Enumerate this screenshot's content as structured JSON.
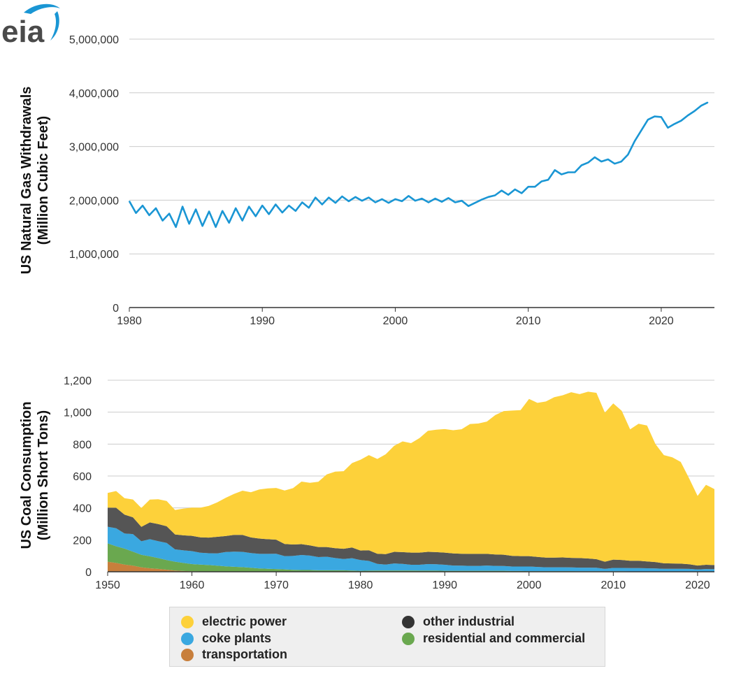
{
  "top_chart": {
    "ylabel_line1": "US Natural Gas Withdrawals",
    "ylabel_line2": "(Million Cubic Feet)",
    "yticks": [
      "0",
      "1,000,000",
      "2,000,000",
      "3,000,000",
      "4,000,000",
      "5,000,000"
    ],
    "xticks": [
      "1980",
      "1990",
      "2000",
      "2010",
      "2020"
    ]
  },
  "bottom_chart": {
    "ylabel_line1": "US Coal Consumption",
    "ylabel_line2": "(Million Short Tons)",
    "yticks": [
      "0",
      "200",
      "400",
      "600",
      "800",
      "1,000",
      "1,200"
    ],
    "xticks": [
      "1950",
      "1960",
      "1970",
      "1980",
      "1990",
      "2000",
      "2010",
      "2020"
    ]
  },
  "legend": {
    "electric_power": "electric power",
    "coke_plants": "coke plants",
    "transportation": "transportation",
    "other_industrial": "other industrial",
    "residential_commercial": "residential and commercial"
  },
  "logo": {
    "text": "eia"
  },
  "colors": {
    "gas_line": "#1a96d4",
    "electric_power": "#fdd13a",
    "coke_plants": "#3aa8e0",
    "transportation": "#c87f3c",
    "other_industrial": "#555555",
    "residential_commercial": "#6aa84f",
    "grid": "#cccccc",
    "axis": "#333333"
  },
  "chart_data": [
    {
      "type": "line",
      "ylabel": "US Natural Gas Withdrawals (Million Cubic Feet)",
      "xlim": [
        1980,
        2024
      ],
      "ylim": [
        0,
        5000000
      ],
      "grid": true,
      "series": [
        {
          "x": [
            1980.0,
            1980.5,
            1981.0,
            1981.5,
            1982.0,
            1982.5,
            1983.0,
            1983.5,
            1984.0,
            1984.5,
            1985.0,
            1985.5,
            1986.0,
            1986.5,
            1987.0,
            1987.5,
            1988.0,
            1988.5,
            1989.0,
            1989.5,
            1990.0,
            1990.5,
            1991.0,
            1991.5,
            1992.0,
            1992.5,
            1993.0,
            1993.5,
            1994.0,
            1994.5,
            1995.0,
            1995.5,
            1996.0,
            1996.5,
            1997.0,
            1997.5,
            1998.0,
            1998.5,
            1999.0,
            1999.5,
            2000.0,
            2000.5,
            2001.0,
            2001.5,
            2002.0,
            2002.5,
            2003.0,
            2003.5,
            2004.0,
            2004.5,
            2005.0,
            2005.5,
            2006.0,
            2006.5,
            2007.0,
            2007.5,
            2008.0,
            2008.5,
            2009.0,
            2009.5,
            2010.0,
            2010.5,
            2011.0,
            2011.5,
            2012.0,
            2012.5,
            2013.0,
            2013.5,
            2014.0,
            2014.5,
            2015.0,
            2015.5,
            2016.0,
            2016.5,
            2017.0,
            2017.5,
            2018.0,
            2018.5,
            2019.0,
            2019.5,
            2020.0,
            2020.5,
            2021.0,
            2021.5,
            2022.0,
            2022.5,
            2023.0,
            2023.5
          ],
          "y": [
            1980000,
            1760000,
            1900000,
            1720000,
            1850000,
            1620000,
            1750000,
            1500000,
            1880000,
            1560000,
            1830000,
            1520000,
            1790000,
            1500000,
            1800000,
            1580000,
            1850000,
            1620000,
            1880000,
            1700000,
            1900000,
            1740000,
            1920000,
            1770000,
            1900000,
            1800000,
            1960000,
            1860000,
            2050000,
            1920000,
            2050000,
            1950000,
            2070000,
            1980000,
            2060000,
            1990000,
            2050000,
            1960000,
            2020000,
            1950000,
            2020000,
            1980000,
            2080000,
            1990000,
            2030000,
            1960000,
            2030000,
            1970000,
            2040000,
            1960000,
            1990000,
            1890000,
            1950000,
            2010000,
            2060000,
            2090000,
            2180000,
            2100000,
            2200000,
            2130000,
            2250000,
            2250000,
            2350000,
            2380000,
            2560000,
            2480000,
            2520000,
            2520000,
            2650000,
            2700000,
            2800000,
            2720000,
            2760000,
            2680000,
            2720000,
            2850000,
            3100000,
            3300000,
            3500000,
            3560000,
            3550000,
            3350000,
            3420000,
            3480000,
            3580000,
            3660000,
            3760000,
            3820000
          ]
        }
      ]
    },
    {
      "type": "area",
      "ylabel": "US Coal Consumption (Million Short Tons)",
      "xlim": [
        1950,
        2022
      ],
      "ylim": [
        0,
        1200
      ],
      "grid": true,
      "stacked": true,
      "x": [
        1950,
        1951,
        1952,
        1953,
        1954,
        1955,
        1956,
        1957,
        1958,
        1959,
        1960,
        1961,
        1962,
        1963,
        1964,
        1965,
        1966,
        1967,
        1968,
        1969,
        1970,
        1971,
        1972,
        1973,
        1974,
        1975,
        1976,
        1977,
        1978,
        1979,
        1980,
        1981,
        1982,
        1983,
        1984,
        1985,
        1986,
        1987,
        1988,
        1989,
        1990,
        1991,
        1992,
        1993,
        1994,
        1995,
        1996,
        1997,
        1998,
        1999,
        2000,
        2001,
        2002,
        2003,
        2004,
        2005,
        2006,
        2007,
        2008,
        2009,
        2010,
        2011,
        2012,
        2013,
        2014,
        2015,
        2016,
        2017,
        2018,
        2019,
        2020,
        2021,
        2022
      ],
      "series": [
        {
          "name": "transportation",
          "values": [
            63,
            55,
            45,
            38,
            28,
            22,
            18,
            13,
            8,
            5,
            3,
            2,
            2,
            1,
            1,
            1,
            1,
            1,
            1,
            1,
            1,
            1,
            0,
            0,
            0,
            0,
            0,
            0,
            0,
            0,
            0,
            0,
            0,
            0,
            0,
            0,
            0,
            0,
            0,
            0,
            0,
            0,
            0,
            0,
            0,
            0,
            0,
            0,
            0,
            0,
            0,
            0,
            0,
            0,
            0,
            0,
            0,
            0,
            0,
            0,
            0,
            0,
            0,
            0,
            0,
            0,
            0,
            0,
            0,
            0,
            0,
            0,
            0
          ]
        },
        {
          "name": "residential and commercial",
          "values": [
            115,
            105,
            100,
            88,
            78,
            75,
            68,
            60,
            55,
            50,
            45,
            43,
            40,
            37,
            33,
            30,
            28,
            24,
            20,
            18,
            16,
            14,
            12,
            11,
            11,
            9,
            9,
            9,
            9,
            8,
            6,
            7,
            8,
            8,
            8,
            8,
            8,
            7,
            7,
            7,
            6,
            6,
            6,
            6,
            6,
            6,
            6,
            6,
            5,
            5,
            4,
            4,
            4,
            4,
            4,
            4,
            3,
            3,
            3,
            3,
            3,
            3,
            2,
            2,
            2,
            2,
            2,
            2,
            2,
            2,
            1,
            1,
            1
          ]
        },
        {
          "name": "coke plants",
          "values": [
            104,
            113,
            95,
            110,
            85,
            107,
            106,
            108,
            77,
            79,
            81,
            74,
            74,
            77,
            90,
            95,
            96,
            92,
            91,
            93,
            96,
            83,
            87,
            94,
            90,
            83,
            85,
            77,
            71,
            77,
            67,
            61,
            41,
            37,
            44,
            41,
            36,
            37,
            41,
            40,
            38,
            33,
            32,
            31,
            31,
            33,
            31,
            30,
            28,
            28,
            29,
            26,
            24,
            24,
            24,
            23,
            23,
            23,
            22,
            15,
            21,
            21,
            21,
            21,
            20,
            19,
            17,
            17,
            17,
            16,
            13,
            16,
            15
          ]
        },
        {
          "name": "other industrial",
          "values": [
            120,
            128,
            118,
            105,
            90,
            105,
            107,
            104,
            94,
            94,
            96,
            97,
            98,
            104,
            100,
            105,
            106,
            98,
            96,
            92,
            88,
            76,
            72,
            68,
            64,
            63,
            61,
            62,
            64,
            67,
            60,
            67,
            64,
            66,
            73,
            74,
            76,
            76,
            77,
            76,
            76,
            76,
            75,
            75,
            75,
            73,
            71,
            71,
            67,
            65,
            65,
            63,
            61,
            61,
            62,
            60,
            60,
            57,
            54,
            45,
            52,
            50,
            46,
            46,
            43,
            40,
            34,
            33,
            32,
            29,
            25,
            27,
            26
          ]
        },
        {
          "name": "electric power",
          "values": [
            92,
            105,
            103,
            112,
            119,
            143,
            155,
            158,
            153,
            168,
            177,
            185,
            199,
            216,
            239,
            257,
            277,
            283,
            308,
            318,
            324,
            335,
            353,
            392,
            392,
            409,
            455,
            479,
            486,
            529,
            569,
            596,
            594,
            625,
            664,
            694,
            686,
            718,
            758,
            767,
            774,
            772,
            780,
            814,
            817,
            829,
            874,
            900,
            910,
            915,
            985,
            965,
            978,
            1005,
            1016,
            1038,
            1027,
            1045,
            1042,
            934,
            979,
            934,
            823,
            858,
            851,
            739,
            678,
            665,
            637,
            538,
            436,
            501,
            476
          ]
        }
      ]
    }
  ]
}
